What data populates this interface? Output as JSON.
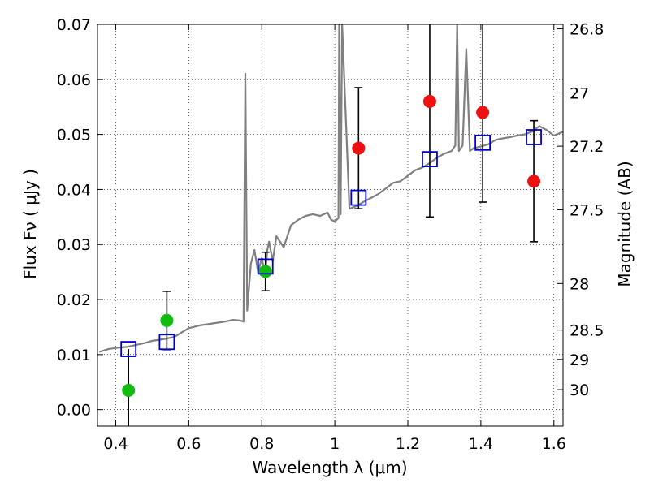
{
  "chart_data": {
    "type": "scatter",
    "title": "",
    "xlabel": "Wavelength  λ (μm)",
    "ylabel": "Flux  Fν  ( μJy )",
    "y2label": "Magnitude (AB)",
    "xlim": [
      0.35,
      1.625
    ],
    "ylim": [
      -0.003,
      0.07
    ],
    "grid": true,
    "colors": {
      "spectrum": "#808080",
      "model": "#0000cc",
      "green_points": "#11bb11",
      "red_points": "#ee1111",
      "errorbar": "#000000"
    },
    "x_ticks": [
      0.4,
      0.6,
      0.8,
      1.0,
      1.2,
      1.4,
      1.6
    ],
    "x_tick_labels": [
      "0.4",
      "0.6",
      "0.8",
      "1",
      "1.2",
      "1.4",
      "1.6"
    ],
    "y_ticks": [
      0.0,
      0.01,
      0.02,
      0.03,
      0.04,
      0.05,
      0.06,
      0.07
    ],
    "y_tick_labels": [
      "0.00",
      "0.01",
      "0.02",
      "0.03",
      "0.04",
      "0.05",
      "0.06",
      "0.07"
    ],
    "y2_ticks": [
      26.8,
      27,
      27.2,
      27.5,
      28,
      28.5,
      29,
      30
    ],
    "y2_tick_labels": [
      "26.8",
      "27",
      "27.2",
      "27.5",
      "28",
      "28.5",
      "29",
      "30"
    ],
    "series": [
      {
        "kind": "spectrum",
        "x": [
          0.355,
          0.38,
          0.4,
          0.43,
          0.46,
          0.48,
          0.5,
          0.53,
          0.56,
          0.58,
          0.6,
          0.63,
          0.66,
          0.68,
          0.7,
          0.72,
          0.74,
          0.75,
          0.755,
          0.76,
          0.77,
          0.78,
          0.79,
          0.8,
          0.81,
          0.815,
          0.82,
          0.83,
          0.84,
          0.85,
          0.86,
          0.88,
          0.9,
          0.92,
          0.94,
          0.96,
          0.98,
          0.99,
          1.0,
          1.01,
          1.012,
          1.016,
          1.02,
          1.04,
          1.06,
          1.08,
          1.1,
          1.12,
          1.14,
          1.16,
          1.18,
          1.2,
          1.22,
          1.24,
          1.26,
          1.28,
          1.3,
          1.32,
          1.33,
          1.335,
          1.34,
          1.35,
          1.36,
          1.37,
          1.38,
          1.4,
          1.42,
          1.44,
          1.46,
          1.48,
          1.5,
          1.52,
          1.54,
          1.56,
          1.58,
          1.6,
          1.625
        ],
        "y": [
          0.0105,
          0.011,
          0.0112,
          0.0114,
          0.0118,
          0.0121,
          0.0125,
          0.0128,
          0.0132,
          0.014,
          0.0148,
          0.0153,
          0.0156,
          0.0158,
          0.016,
          0.0163,
          0.0162,
          0.016,
          0.061,
          0.018,
          0.0265,
          0.029,
          0.025,
          0.0275,
          0.0245,
          0.029,
          0.0305,
          0.027,
          0.0315,
          0.0305,
          0.0295,
          0.0335,
          0.0345,
          0.0352,
          0.0355,
          0.0352,
          0.0358,
          0.0345,
          0.0342,
          0.0348,
          0.07,
          0.0355,
          0.07,
          0.0365,
          0.037,
          0.0378,
          0.0385,
          0.0392,
          0.0402,
          0.0412,
          0.0415,
          0.0425,
          0.0435,
          0.044,
          0.0448,
          0.0458,
          0.0465,
          0.047,
          0.048,
          0.07,
          0.047,
          0.048,
          0.0655,
          0.047,
          0.0475,
          0.0478,
          0.0482,
          0.049,
          0.0493,
          0.0495,
          0.0498,
          0.05,
          0.0505,
          0.0515,
          0.0508,
          0.0498,
          0.0505
        ]
      },
      {
        "kind": "model",
        "x": [
          0.435,
          0.54,
          0.81,
          1.065,
          1.26,
          1.405,
          1.545
        ],
        "y": [
          0.011,
          0.0123,
          0.026,
          0.0385,
          0.0455,
          0.0485,
          0.0495
        ]
      },
      {
        "kind": "green_points",
        "x": [
          0.435,
          0.54,
          0.81
        ],
        "y": [
          0.0035,
          0.0162,
          0.0251
        ],
        "err": [
          0.0,
          0.0053,
          0.0035
        ]
      },
      {
        "kind": "red_points",
        "x": [
          1.065,
          1.26,
          1.405,
          1.545
        ],
        "y": [
          0.0475,
          0.056,
          0.054,
          0.0415
        ],
        "err": [
          0.011,
          0.021,
          0.0163,
          0.011
        ]
      },
      {
        "kind": "errorbar_only",
        "x": [
          0.435
        ],
        "y_low": [
          -0.003
        ],
        "y_high": [
          0.011
        ]
      }
    ]
  }
}
